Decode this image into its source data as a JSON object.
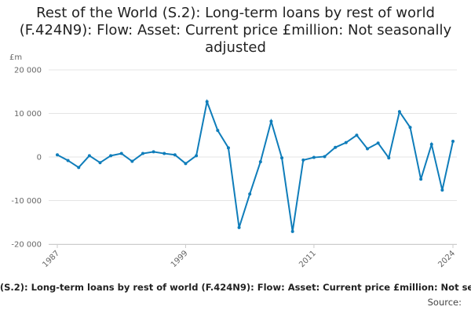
{
  "chart_data": {
    "type": "line",
    "title": "Rest of the World (S.2): Long-term loans by rest of world (F.424N9): Flow: Asset: Current price £million: Not seasonally adjusted",
    "y_unit": "£m",
    "footer": "Source:",
    "x": [
      1987,
      1988,
      1989,
      1990,
      1991,
      1992,
      1993,
      1994,
      1995,
      1996,
      1997,
      1998,
      1999,
      2000,
      2001,
      2002,
      2003,
      2004,
      2005,
      2006,
      2007,
      2008,
      2009,
      2010,
      2011,
      2012,
      2013,
      2014,
      2015,
      2016,
      2017,
      2018,
      2019,
      2020,
      2021,
      2022,
      2023,
      2024
    ],
    "series": [
      {
        "color": "#0f7dba",
        "values": [
          500,
          -800,
          -2400,
          300,
          -1300,
          300,
          800,
          -1000,
          800,
          1200,
          800,
          500,
          -1500,
          300,
          12700,
          6100,
          2100,
          -16200,
          -8500,
          -1100,
          8200,
          -200,
          -17100,
          -700,
          -100,
          100,
          2200,
          3300,
          5000,
          1900,
          3200,
          -200,
          10400,
          6800,
          -5100,
          2900,
          -7600,
          3600
        ]
      }
    ],
    "xlim": [
      1987,
      2024
    ],
    "xticks": [
      1987,
      1999,
      2011,
      2024
    ],
    "ylim": [
      -20000,
      20000
    ],
    "yticks": [
      {
        "value": -20000,
        "label": "-20 000"
      },
      {
        "value": -10000,
        "label": "-10 000"
      },
      0,
      {
        "value": 10000,
        "label": "10 000"
      },
      {
        "value": 20000,
        "label": "20 000"
      }
    ],
    "grid": true
  }
}
